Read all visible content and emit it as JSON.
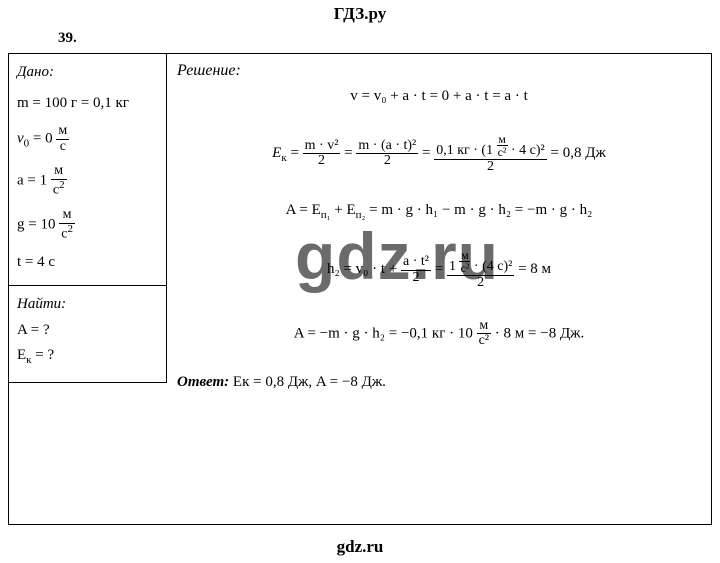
{
  "site_header": "ГДЗ.ру",
  "site_footer": "gdz.ru",
  "watermark": "gdz.ru",
  "problem_number": "39.",
  "given": {
    "title": "Дано:",
    "mass": {
      "lhs": "m = 100 г = 0,1 кг"
    },
    "v0": {
      "prefix": "v",
      "sub": "0",
      "eq": " = 0 ",
      "unit_num": "м",
      "unit_den": "с"
    },
    "a": {
      "prefix": "a = 1 ",
      "unit_num": "м",
      "unit_den": "с",
      "unit_den_sup": "2"
    },
    "g": {
      "prefix": "g = 10 ",
      "unit_num": "м",
      "unit_den": "с",
      "unit_den_sup": "2"
    },
    "t": {
      "lhs": "t = 4 с"
    }
  },
  "find": {
    "title": "Найти:",
    "A": "A = ?",
    "Ek_prefix": "E",
    "Ek_sub": "к",
    "Ek_suffix": " = ?"
  },
  "solution": {
    "title": "Решение:",
    "line1": "v = v₀ + a · t = 0 + a · t = a · t",
    "ek": {
      "lhs_prefix": "E",
      "lhs_sub": "к",
      "eq": " = ",
      "f1_num": "m · v²",
      "f1_den": "2",
      "f2_num": "m · (a · t)²",
      "f2_den": "2",
      "f3_num_a": "0,1 кг · (1 ",
      "f3_unit_num": "м",
      "f3_unit_den": "с²",
      "f3_num_b": " · 4 с)²",
      "f3_den": "2",
      "result": " = 0,8 Дж"
    },
    "A_line": {
      "prefix": "A = E",
      "p1_sub": "п₁",
      "plus": " + E",
      "p2_sub": "п₂",
      "rest": " = m · g · h₁ − m · g · h₂ = −m · g · h₂"
    },
    "h2": {
      "lhs": "h₂ = v₀ · t + ",
      "f1_num": "a · t²",
      "f1_den": "2",
      "eq": " = ",
      "f2_num_a": "1 ",
      "f2_unit_num": "м",
      "f2_unit_den": "с²",
      "f2_num_b": " · (4 с)²",
      "f2_den": "2",
      "result": " = 8 м"
    },
    "A_final": {
      "prefix": "A = −m · g · h₂ = −0,1 кг · 10 ",
      "unit_num": "м",
      "unit_den": "с²",
      "suffix": " · 8 м = −8 Дж."
    },
    "answer": {
      "label": "Ответ:",
      "text": " Eк = 0,8 Дж, A = −8 Дж."
    }
  },
  "colors": {
    "text": "#000000",
    "bg": "#ffffff",
    "watermark": "rgba(0,0,0,0.58)"
  }
}
